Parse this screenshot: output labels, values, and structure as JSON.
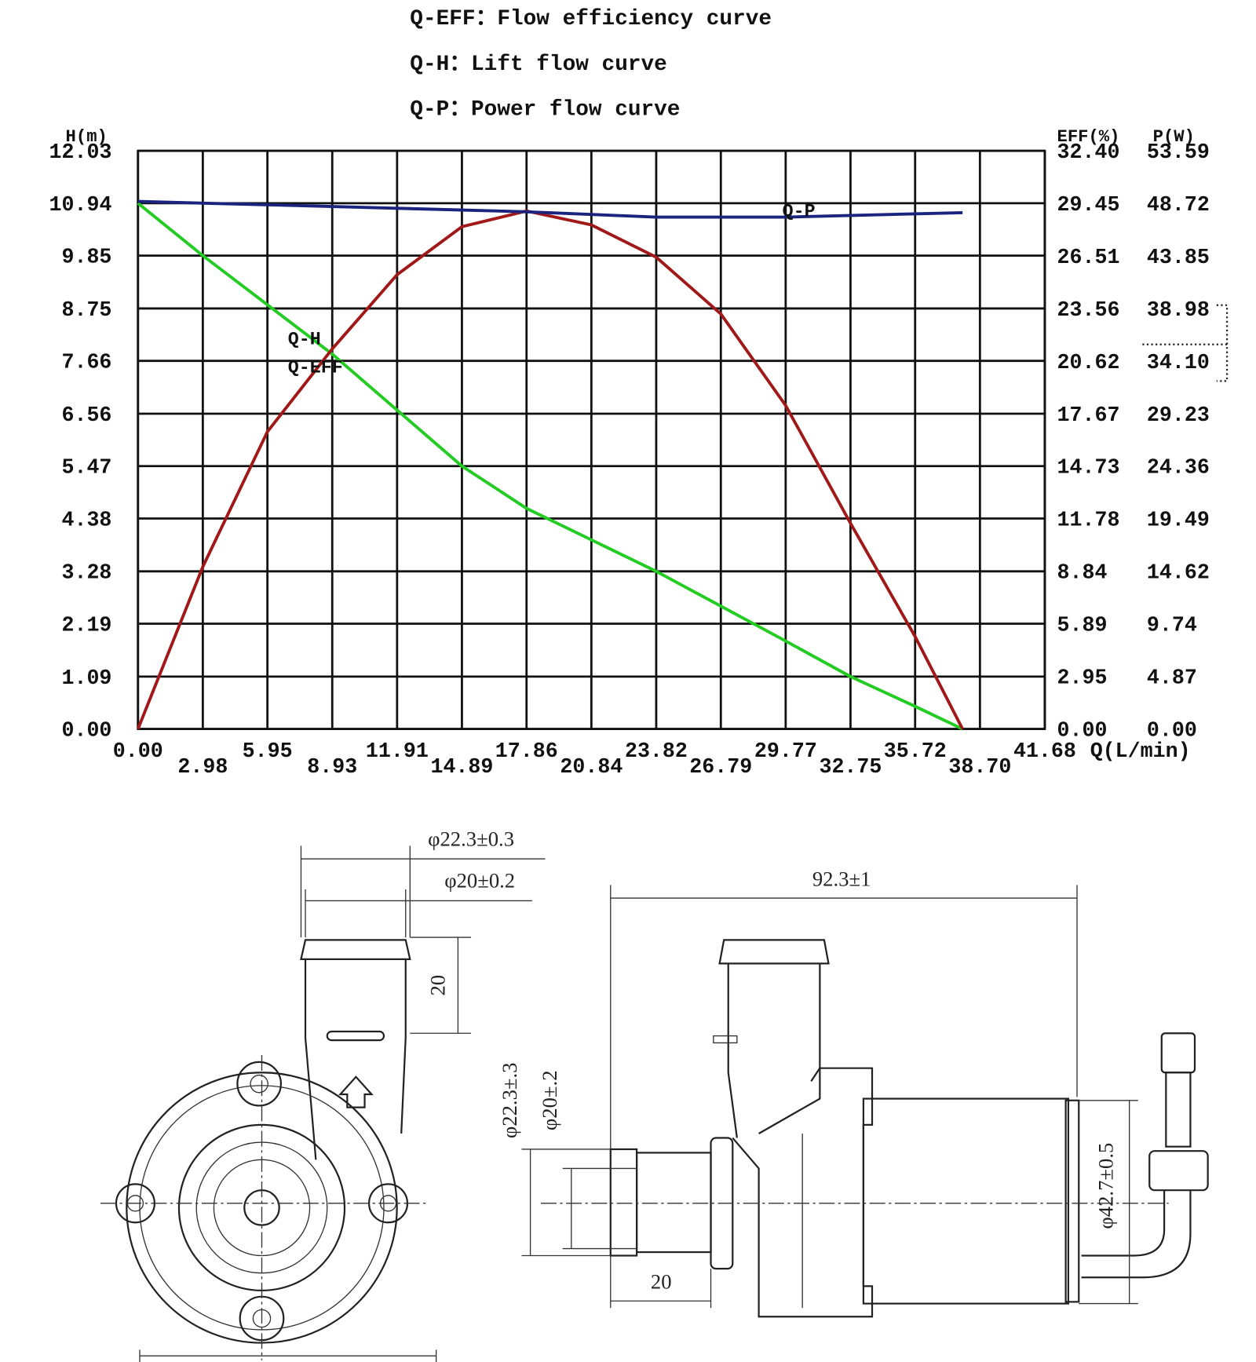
{
  "chart_data": {
    "type": "line",
    "notes": [
      "Q-EFF：Flow efficiency curve",
      "Q-H：Lift flow curve",
      "Q-P：Power flow curve"
    ],
    "y_label": "H(m)",
    "y2_label": "EFF(%)",
    "y3_label": "P(W)",
    "x_label": "Q(L/min)",
    "xlim": [
      0,
      41.68
    ],
    "xticks": [
      {
        "value": 0,
        "label": "0.00"
      },
      2.98,
      5.95,
      8.93,
      11.91,
      14.89,
      17.86,
      20.84,
      23.82,
      26.79,
      29.77,
      32.75,
      35.72,
      {
        "value": 38.7,
        "label": "38.70"
      },
      41.68
    ],
    "ylim": [
      0,
      12.03
    ],
    "yticks": [
      {
        "value": 0,
        "label": "0.00"
      },
      1.09,
      2.19,
      3.28,
      4.38,
      5.47,
      6.56,
      7.66,
      8.75,
      9.85,
      10.94,
      12.03
    ],
    "y2lim": [
      0,
      32.4
    ],
    "y2ticks": [
      {
        "value": 0,
        "label": "0.00"
      },
      2.95,
      5.89,
      8.84,
      11.78,
      14.73,
      17.67,
      20.62,
      23.56,
      26.51,
      29.45,
      {
        "value": 32.4,
        "label": "32.40"
      }
    ],
    "y3lim": [
      0,
      53.59
    ],
    "y3ticks": [
      {
        "value": 0,
        "label": "0.00"
      },
      4.87,
      9.74,
      14.62,
      19.49,
      24.36,
      29.23,
      {
        "value": 34.1,
        "label": "34.10"
      },
      38.98,
      43.85,
      48.72,
      53.59
    ],
    "grid": true,
    "series": [
      {
        "name": "Q-H",
        "color": "#22cc22",
        "axis": "y",
        "x": [
          0,
          2.98,
          8.93,
          14.89,
          17.86,
          23.82,
          29.77,
          32.75,
          35.72,
          37.9
        ],
        "values": [
          10.94,
          9.85,
          7.8,
          5.47,
          4.59,
          3.28,
          1.83,
          1.09,
          0.47,
          0
        ]
      },
      {
        "name": "Q-EFF",
        "color": "#a01818",
        "axis": "y2",
        "x": [
          0,
          2.98,
          5.95,
          8.93,
          11.91,
          14.89,
          17.86,
          20.84,
          23.82,
          26.79,
          29.77,
          32.75,
          35.72,
          37.9
        ],
        "values": [
          0,
          9.09,
          16.66,
          21.3,
          25.46,
          28.15,
          29.03,
          28.25,
          26.44,
          23.26,
          18.13,
          11.53,
          5.18,
          0
        ]
      },
      {
        "name": "Q-P",
        "color": "#1a237e",
        "axis": "y3",
        "x": [
          0,
          8.93,
          17.86,
          23.82,
          29.77,
          37.9
        ],
        "values": [
          48.9,
          48.43,
          47.94,
          47.45,
          47.45,
          47.86
        ]
      }
    ]
  },
  "drawing": {
    "dimensions": [
      "φ22.3±0.3",
      "φ20±0.2",
      "20",
      "92.3±1",
      "φ22.3±.3",
      "φ20±.2",
      "φ42.7±0.5",
      "20"
    ]
  }
}
